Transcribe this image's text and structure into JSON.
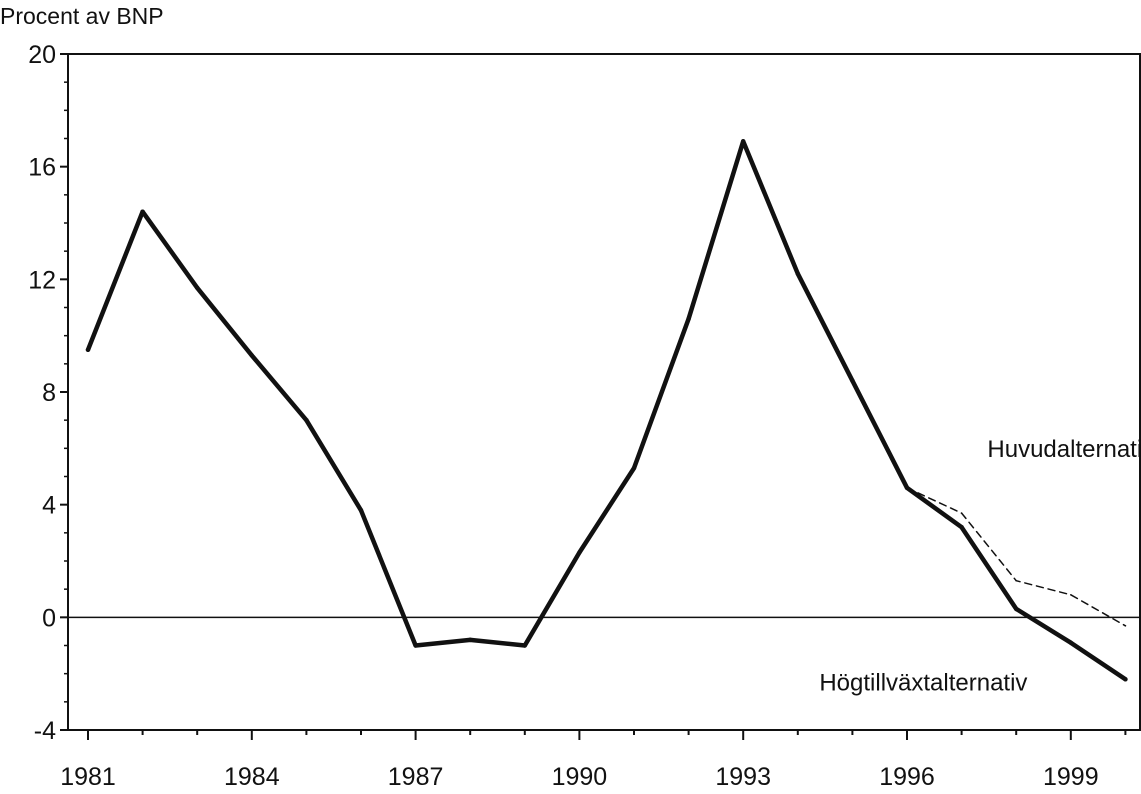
{
  "chart_data": {
    "type": "line",
    "title": "",
    "ylabel": "Procent av BNP",
    "xlabel": "",
    "xlim": [
      1981,
      2000
    ],
    "ylim": [
      -4,
      20
    ],
    "x_ticks": [
      1981,
      1984,
      1987,
      1990,
      1993,
      1996,
      1999
    ],
    "x_tick_labels": [
      "1981",
      "1984",
      "1987",
      "1990",
      "1993",
      "1996",
      "1999"
    ],
    "y_ticks": [
      -4,
      0,
      4,
      8,
      12,
      16,
      20
    ],
    "y_tick_labels": [
      "-4",
      "0",
      "4",
      "8",
      "12",
      "16",
      "20"
    ],
    "grid": false,
    "zero_line": true,
    "series": [
      {
        "style": "solid",
        "x": [
          1981,
          1982,
          1983,
          1984,
          1985,
          1986,
          1987,
          1988,
          1989,
          1990,
          1991,
          1992,
          1993,
          1994,
          1995,
          1996,
          1997,
          1998,
          1999,
          2000
        ],
        "values": [
          9.5,
          14.4,
          11.7,
          9.3,
          7.0,
          3.8,
          -1.0,
          -0.8,
          -1.0,
          2.3,
          5.3,
          10.6,
          16.9,
          12.2,
          8.4,
          4.6,
          3.2,
          0.3,
          -0.9,
          -2.2
        ]
      },
      {
        "style": "dashed",
        "x": [
          1996,
          1997,
          1998,
          1999,
          2000
        ],
        "values": [
          4.6,
          3.7,
          1.3,
          0.8,
          -0.3
        ]
      }
    ],
    "annotations": [
      {
        "text": "Huvudalternativ",
        "x": 1999.0,
        "y": 5.7
      },
      {
        "text": "Högtillväxtalternativ",
        "x": 1996.3,
        "y": -2.6
      }
    ]
  }
}
